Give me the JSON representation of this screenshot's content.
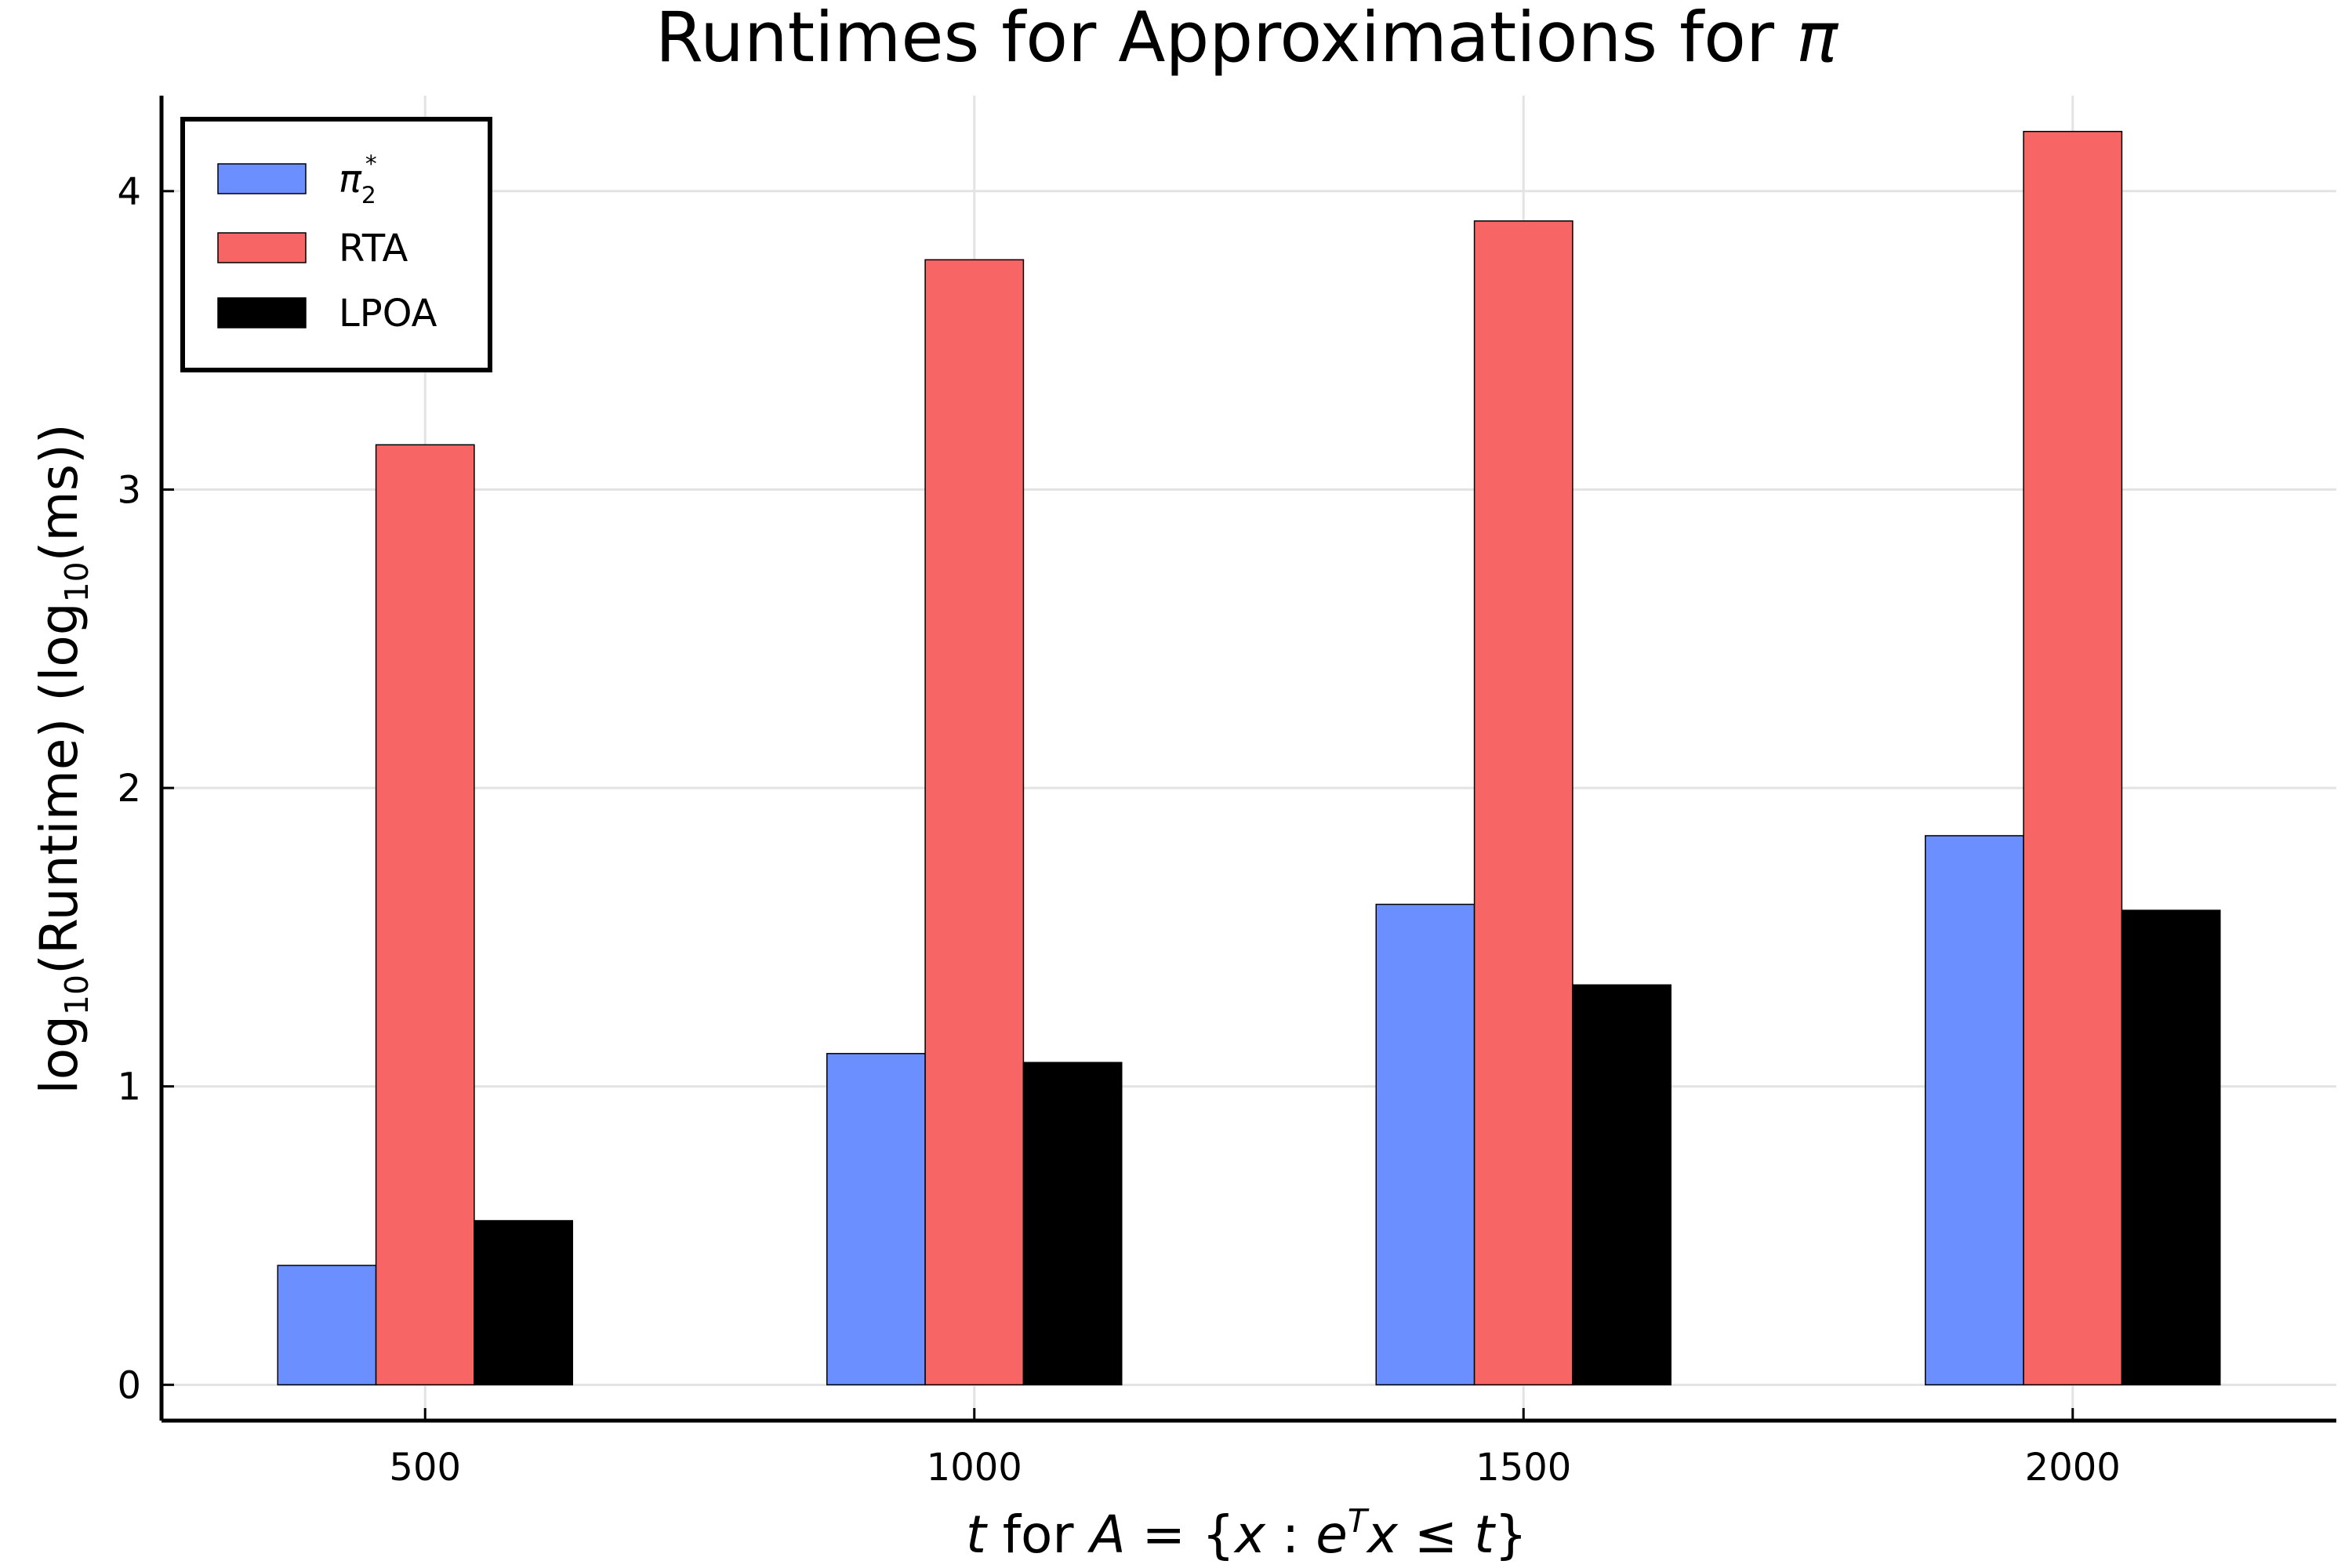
{
  "chart_data": {
    "type": "bar",
    "title": "Runtimes for Approximations for π",
    "xlabel": "t for A = {x : e^T x ≤ t}",
    "ylabel": "log10(Runtime) (log10(ms))",
    "categories": [
      500,
      1000,
      1500,
      2000
    ],
    "x_ticks": [
      "500",
      "1000",
      "1500",
      "2000"
    ],
    "y_ticks": [
      "0",
      "1",
      "2",
      "3",
      "4"
    ],
    "xlim": [
      260,
      2240
    ],
    "ylim": [
      -0.12,
      4.32
    ],
    "grid": true,
    "legend_position": "top-left",
    "series": [
      {
        "name": "π₂*",
        "color": "#6b8fff",
        "values": [
          0.4,
          1.11,
          1.61,
          1.84
        ]
      },
      {
        "name": "RTA",
        "color": "#f86565",
        "values": [
          3.15,
          3.77,
          3.9,
          4.2
        ]
      },
      {
        "name": "LPOA",
        "color": "#000000",
        "values": [
          0.55,
          1.08,
          1.34,
          1.59
        ]
      }
    ]
  }
}
